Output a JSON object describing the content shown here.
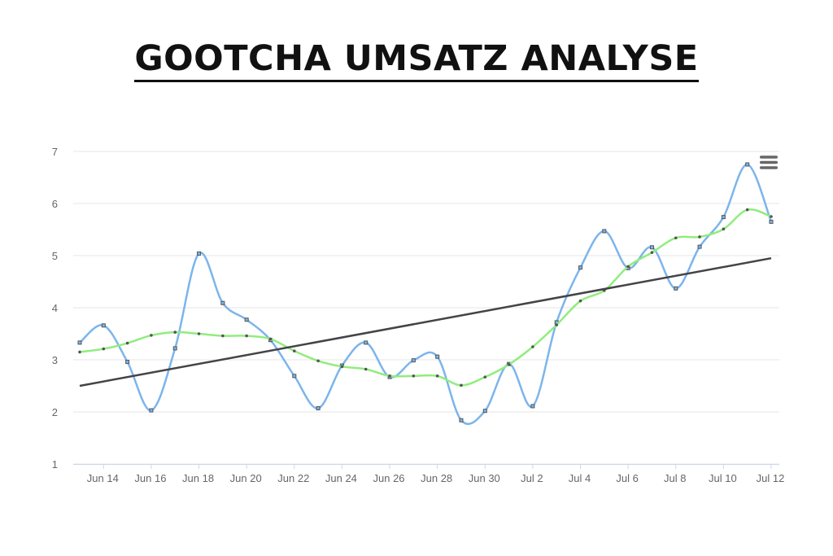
{
  "page": {
    "title": "GOOTCHA UMSATZ ANALYSE"
  },
  "colors": {
    "actual": "#7cb5ec",
    "smoothed": "#90ed7d",
    "trend": "#434348",
    "grid": "#e6e6e6",
    "axis_text": "#666666",
    "marker": "#555555"
  },
  "chart_data": {
    "type": "line",
    "title": "GOOTCHA UMSATZ ANALYSE",
    "x_tick_labels": [
      "Jun 14",
      "Jun 16",
      "Jun 18",
      "Jun 20",
      "Jun 22",
      "Jun 24",
      "Jun 26",
      "Jun 28",
      "Jun 30",
      "Jul 2",
      "Jul 4",
      "Jul 6",
      "Jul 8",
      "Jul 10",
      "Jul 12"
    ],
    "y_ticks": [
      1,
      2,
      3,
      4,
      5,
      6,
      7
    ],
    "ylim": [
      1,
      7
    ],
    "x_start": "Jun 13",
    "x_end": "Jul 12",
    "grid": true,
    "legend": "none",
    "series": [
      {
        "color_key": "actual",
        "x": [
          "Jun 13",
          "Jun 14",
          "Jun 15",
          "Jun 16",
          "Jun 17",
          "Jun 18",
          "Jun 19",
          "Jun 20",
          "Jun 21",
          "Jun 22",
          "Jun 23",
          "Jun 24",
          "Jun 25",
          "Jun 26",
          "Jun 27",
          "Jun 28",
          "Jun 29",
          "Jun 30",
          "Jul 1",
          "Jul 2",
          "Jul 3",
          "Jul 4",
          "Jul 5",
          "Jul 6",
          "Jul 7",
          "Jul 8",
          "Jul 9",
          "Jul 10",
          "Jul 11",
          "Jul 12"
        ],
        "values": [
          3.33,
          3.66,
          2.96,
          2.03,
          3.22,
          5.04,
          4.09,
          3.77,
          3.38,
          2.69,
          2.07,
          2.89,
          3.33,
          2.67,
          2.99,
          3.06,
          1.84,
          2.02,
          2.92,
          2.11,
          3.72,
          4.77,
          5.47,
          4.76,
          5.16,
          4.37,
          5.17,
          5.74,
          6.75,
          5.65
        ]
      },
      {
        "color_key": "smoothed",
        "x": [
          "Jun 13",
          "Jun 14",
          "Jun 15",
          "Jun 16",
          "Jun 17",
          "Jun 18",
          "Jun 19",
          "Jun 20",
          "Jun 21",
          "Jun 22",
          "Jun 23",
          "Jun 24",
          "Jun 25",
          "Jun 26",
          "Jun 27",
          "Jun 28",
          "Jun 29",
          "Jun 30",
          "Jul 1",
          "Jul 2",
          "Jul 3",
          "Jul 4",
          "Jul 5",
          "Jul 6",
          "Jul 7",
          "Jul 8",
          "Jul 9",
          "Jul 10",
          "Jul 11",
          "Jul 12"
        ],
        "values": [
          3.15,
          3.21,
          3.32,
          3.47,
          3.53,
          3.5,
          3.46,
          3.46,
          3.4,
          3.17,
          2.98,
          2.87,
          2.82,
          2.69,
          2.69,
          2.69,
          2.51,
          2.67,
          2.91,
          3.25,
          3.67,
          4.13,
          4.33,
          4.79,
          5.06,
          5.34,
          5.36,
          5.51,
          5.88,
          5.75
        ]
      },
      {
        "color_key": "trend",
        "x": [
          "Jun 13",
          "Jul 12"
        ],
        "values": [
          2.5,
          4.95
        ]
      }
    ]
  }
}
